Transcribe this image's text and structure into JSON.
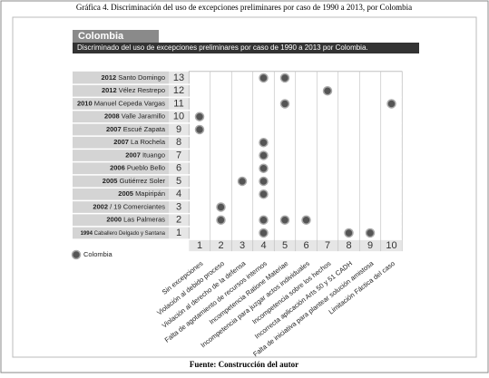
{
  "caption": "Gráfica 4. Discriminación del uso de excepciones preliminares por caso de 1990 a 2013, por Colombia",
  "source": "Fuente:  Construcción del autor",
  "chart_data": {
    "type": "scatter",
    "title": "Colombia",
    "subtitle": "Discriminado del uso de excepciones preliminares por caso de 1990 a 2013 por Colombia.",
    "xlim": [
      0.5,
      10.5
    ],
    "ylim": [
      0.5,
      13.5
    ],
    "xticks": [
      1,
      2,
      3,
      4,
      5,
      6,
      7,
      8,
      9,
      10
    ],
    "yticks": [
      1,
      2,
      3,
      4,
      5,
      6,
      7,
      8,
      9,
      10,
      11,
      12,
      13
    ],
    "x_categories": [
      "Sin excepciones",
      "Violación al debido proceso",
      "Violación al derecho de la defensa",
      "Falta de agotamiento de recursos internos",
      "Incompetencia Ratione Materiae",
      "Incompetencia para juzgar actos individuales",
      "Incompetencia sobre los hechos",
      "Incorrecta aplicación Arts 50 y 51 CADH",
      "Falta de iniciativa para plantear solución amistosa",
      "Limitación Fáctica del caso"
    ],
    "row_labels": [
      {
        "year": "1994",
        "case": "Caballero Delgado y Santana"
      },
      {
        "year": "2000",
        "case": "Las Palmeras"
      },
      {
        "year": "2002",
        "case": "/ 19 Comerciantes"
      },
      {
        "year": "2005",
        "case": "Mapiripán"
      },
      {
        "year": "2005",
        "case": "Gutiérrez Soler"
      },
      {
        "year": "2006",
        "case": "Pueblo Bello"
      },
      {
        "year": "2007",
        "case": "Ituango"
      },
      {
        "year": "2007",
        "case": "La Rochela"
      },
      {
        "year": "2007",
        "case": "Escué Zapata"
      },
      {
        "year": "2008",
        "case": "Valle Jaramillo"
      },
      {
        "year": "2010",
        "case": "Manuel Cepeda Vargas"
      },
      {
        "year": "2012",
        "case": "Vélez Restrepo"
      },
      {
        "year": "2012",
        "case": "Santo Domingo"
      }
    ],
    "series": [
      {
        "name": "Colombia",
        "color": "#555555",
        "x": [
          4,
          5,
          7,
          5,
          10,
          1,
          1,
          4,
          4,
          4,
          3,
          4,
          4,
          2,
          2,
          4,
          5,
          6,
          4,
          8,
          9
        ],
        "values": [
          13,
          13,
          12,
          11,
          11,
          10,
          9,
          8,
          7,
          6,
          5,
          5,
          4,
          3,
          2,
          2,
          2,
          2,
          1,
          1,
          1
        ]
      }
    ]
  }
}
